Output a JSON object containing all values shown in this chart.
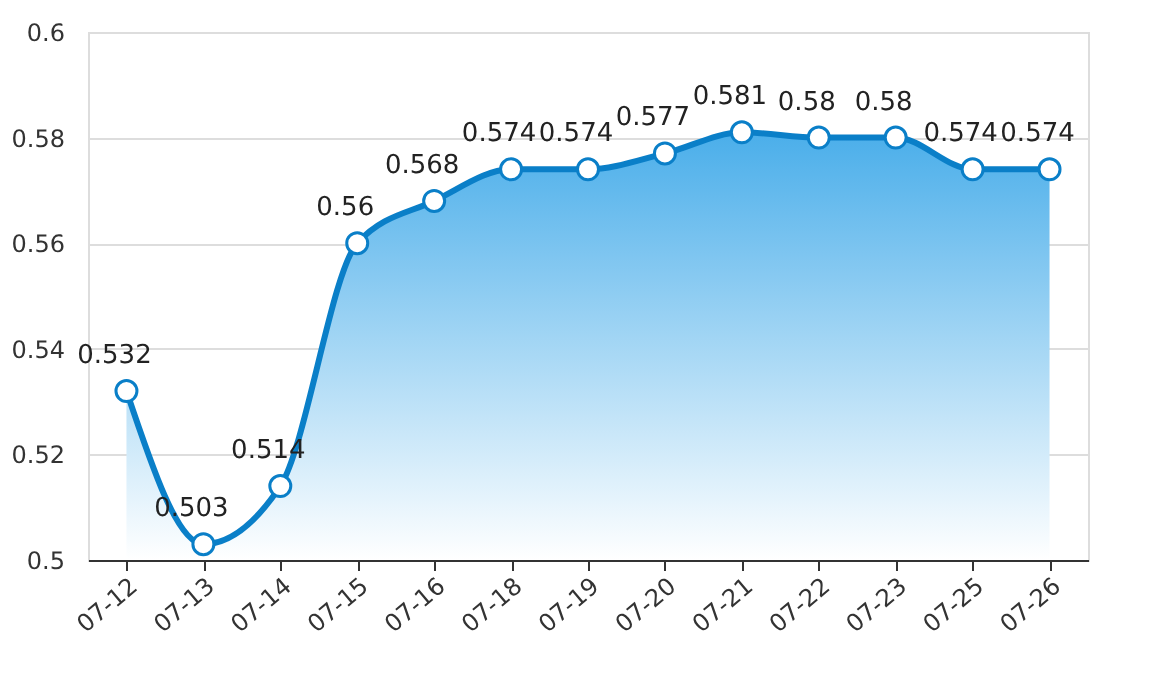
{
  "chart_data": {
    "type": "area",
    "categories": [
      "07-12",
      "07-13",
      "07-14",
      "07-15",
      "07-16",
      "07-18",
      "07-19",
      "07-20",
      "07-21",
      "07-22",
      "07-23",
      "07-25",
      "07-26"
    ],
    "series": [
      {
        "color": "#0a7fc8",
        "values": [
          0.532,
          0.503,
          0.514,
          0.56,
          0.568,
          0.574,
          0.574,
          0.577,
          0.581,
          0.58,
          0.58,
          0.574,
          0.574
        ]
      }
    ],
    "ylim": [
      0.5,
      0.6
    ],
    "yticks": [
      0.5,
      0.52,
      0.54,
      0.56,
      0.58,
      0.6
    ],
    "grid": "y",
    "marker": "circle",
    "data_labels": true,
    "line_style": "solid"
  }
}
